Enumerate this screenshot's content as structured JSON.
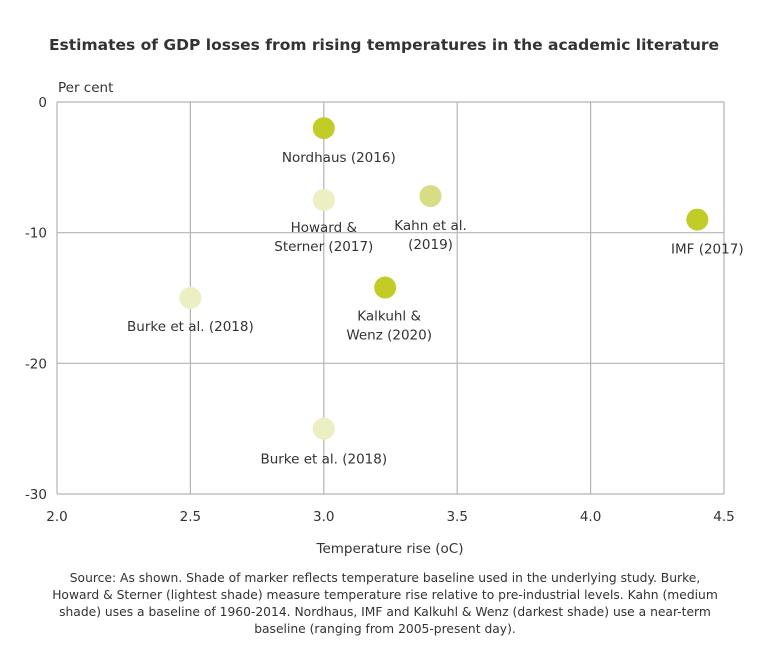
{
  "chart_data": {
    "type": "scatter",
    "title": "Estimates of GDP losses from rising temperatures in the academic literature",
    "ylabel": "Per cent",
    "xlabel": "Temperature rise (oC)",
    "xlim": [
      2.0,
      4.5
    ],
    "ylim": [
      -30,
      0
    ],
    "x_ticks": [
      "2.0",
      "2.5",
      "3.0",
      "3.5",
      "4.0",
      "4.5"
    ],
    "y_ticks": [
      "0",
      "-10",
      "-20",
      "-30"
    ],
    "grid": true,
    "points": [
      {
        "label": "Nordhaus (2016)",
        "x": 3.0,
        "y": -2.0,
        "shade": "darkest",
        "color": "#c2cc27"
      },
      {
        "label": "Howard & Sterner (2017)",
        "x": 3.0,
        "y": -7.5,
        "shade": "lightest",
        "color": "#ebefc1"
      },
      {
        "label": "Kahn et al. (2019)",
        "x": 3.4,
        "y": -7.2,
        "shade": "medium",
        "color": "#d7dd85"
      },
      {
        "label": "IMF (2017)",
        "x": 4.4,
        "y": -9.0,
        "shade": "darkest",
        "color": "#c2cc27"
      },
      {
        "label": "Burke et al. (2018)",
        "x": 2.5,
        "y": -15.0,
        "shade": "lightest",
        "color": "#ebefc1"
      },
      {
        "label": "Kalkuhl & Wenz (2020)",
        "x": 3.23,
        "y": -14.2,
        "shade": "darkest",
        "color": "#c2cc27"
      },
      {
        "label": "Burke et al. (2018)",
        "x": 3.0,
        "y": -25.0,
        "shade": "lightest",
        "color": "#ebefc1"
      }
    ]
  },
  "colors": {
    "grid": "#b4b4b4",
    "darkest": "#c2cc27",
    "medium": "#d7dd85",
    "lightest": "#ebefc1"
  },
  "footnote": "Source: As shown. Shade of marker reflects temperature baseline used in the underlying study. Burke, Howard & Sterner (lightest shade) measure temperature rise relative to pre-industrial levels. Kahn (medium shade) uses a baseline of 1960-2014. Nordhaus, IMF and Kalkuhl & Wenz (darkest shade) use a near-term baseline (ranging from 2005-present day)."
}
